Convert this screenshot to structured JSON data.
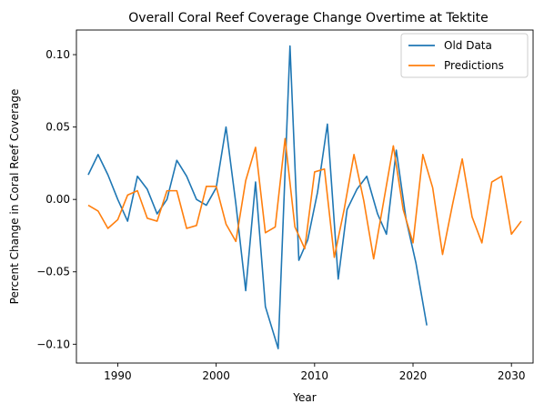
{
  "chart_data": {
    "type": "line",
    "title": "Overall Coral Reef Coverage Change Overtime at Tektite",
    "xlabel": "Year",
    "ylabel": "Percent Change in Coral Reef Coverage",
    "xlim": [
      1985.8,
      2032.2
    ],
    "ylim": [
      -0.113,
      0.117
    ],
    "xticks": [
      1990,
      2000,
      2010,
      2020,
      2030
    ],
    "xtick_labels": [
      "1990",
      "2000",
      "2010",
      "2020",
      "2030"
    ],
    "yticks": [
      -0.1,
      -0.05,
      0.0,
      0.05,
      0.1
    ],
    "ytick_labels": [
      "−0.10",
      "−0.05",
      "0.00",
      "0.05",
      "0.10"
    ],
    "grid": false,
    "legend_position": "top-right",
    "series": [
      {
        "name": "Old Data",
        "color": "#1f77b4",
        "x": [
          1987,
          1988,
          1989,
          1990,
          1991,
          1992,
          1993,
          1994,
          1995,
          1996,
          1997,
          1998,
          1999,
          2000,
          2001,
          2002,
          2003,
          2004,
          2005,
          2006.3,
          2007.5,
          2008.4,
          2009.3,
          2010.3,
          2011.3,
          2012.4,
          2013.3,
          2014.3,
          2015.3,
          2016.4,
          2017.3,
          2018.3,
          2019.3,
          2020.3,
          2021.4
        ],
        "values": [
          0.017,
          0.031,
          0.017,
          0.0,
          -0.015,
          0.016,
          0.007,
          -0.01,
          0.0,
          0.027,
          0.016,
          0.0,
          -0.004,
          0.008,
          0.05,
          -0.003,
          -0.063,
          0.012,
          -0.074,
          -0.103,
          0.106,
          -0.042,
          -0.028,
          0.005,
          0.052,
          -0.055,
          -0.007,
          0.007,
          0.016,
          -0.01,
          -0.024,
          0.034,
          -0.014,
          -0.044,
          -0.087
        ]
      },
      {
        "name": "Predictions",
        "color": "#ff7f0e",
        "x": [
          1987,
          1988,
          1989,
          1990,
          1991,
          1992,
          1993,
          1994,
          1995,
          1996,
          1997,
          1998,
          1999,
          2000,
          2001,
          2002,
          2003,
          2004,
          2005,
          2006,
          2007,
          2008,
          2009,
          2010,
          2011,
          2012,
          2013,
          2014,
          2015,
          2016,
          2017,
          2018,
          2019,
          2020,
          2021,
          2022,
          2023,
          2024,
          2025,
          2026,
          2027,
          2028,
          2029,
          2030,
          2031
        ],
        "values": [
          -0.004,
          -0.008,
          -0.02,
          -0.014,
          0.003,
          0.006,
          -0.013,
          -0.015,
          0.006,
          0.006,
          -0.02,
          -0.018,
          0.009,
          0.009,
          -0.017,
          -0.029,
          0.013,
          0.036,
          -0.023,
          -0.019,
          0.042,
          -0.019,
          -0.034,
          0.019,
          0.021,
          -0.04,
          -0.007,
          0.031,
          -0.001,
          -0.041,
          -0.002,
          0.037,
          -0.007,
          -0.03,
          0.031,
          0.008,
          -0.038,
          -0.004,
          0.028,
          -0.012,
          -0.03,
          0.012,
          0.016,
          -0.024,
          -0.015
        ]
      }
    ]
  }
}
